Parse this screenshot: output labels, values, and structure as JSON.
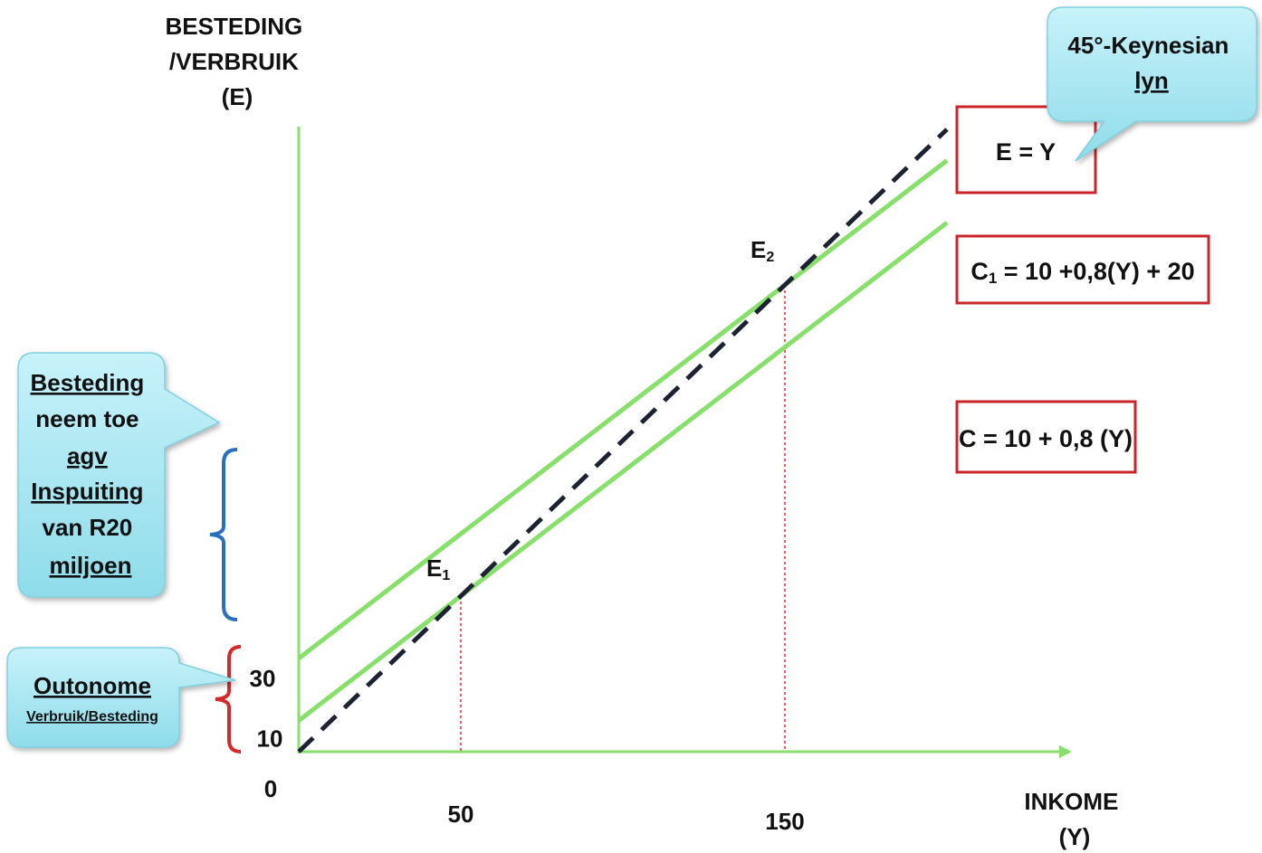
{
  "chart_data": {
    "type": "line",
    "ylabel_lines": [
      "BESTEDING",
      "/VERBRUIK",
      "(E)"
    ],
    "xlabel_lines": [
      "INKOME",
      "(Y)"
    ],
    "origin_label": "0",
    "x_ticks": [
      {
        "value": 50,
        "label": "50"
      },
      {
        "value": 150,
        "label": "150"
      }
    ],
    "y_ticks": [
      {
        "value": 10,
        "label": "10"
      },
      {
        "value": 30,
        "label": "30"
      }
    ],
    "series": [
      {
        "name": "E = Y",
        "style": "dashed",
        "color": "#1c2233",
        "x": [
          0,
          200
        ],
        "y": [
          0,
          200
        ]
      },
      {
        "name": "C = 10 + 0,8 (Y)",
        "style": "solid",
        "color": "#86e06a",
        "x": [
          0,
          200
        ],
        "y": [
          10,
          170
        ]
      },
      {
        "name": "C1 = 10 +0,8(Y) + 20",
        "style": "solid",
        "color": "#86e06a",
        "x": [
          0,
          200
        ],
        "y": [
          30,
          190
        ]
      }
    ],
    "points": [
      {
        "label": "E",
        "sub": "1",
        "x": 50,
        "y": 50
      },
      {
        "label": "E",
        "sub": "2",
        "x": 150,
        "y": 150
      }
    ],
    "equation_boxes": [
      {
        "id": "ey",
        "text": "E = Y"
      },
      {
        "id": "c1",
        "main": "C",
        "sub": "1",
        "rest": " = 10 +0,8(Y) + 20"
      },
      {
        "id": "c",
        "text": "C = 10 + 0,8 (Y)"
      }
    ],
    "callouts": {
      "keynesian": [
        "45°-Keynesian",
        "lyn"
      ],
      "increase": [
        "Besteding",
        "neem toe",
        "agv",
        "Inspuiting",
        "van R20",
        "miljoen"
      ],
      "autonomous_title": "Outonome",
      "autonomous_sub": "Verbruik/Besteding"
    },
    "colors": {
      "axis": "#86e06a",
      "consumption": "#86e06a",
      "keynesian": "#1c2233",
      "guide": "#e0302a",
      "box_border": "#c9242a",
      "bracket_increase": "#2a6fbf",
      "bracket_autonomous": "#d42a2a",
      "callout_fill": "#a6e6f2"
    }
  }
}
